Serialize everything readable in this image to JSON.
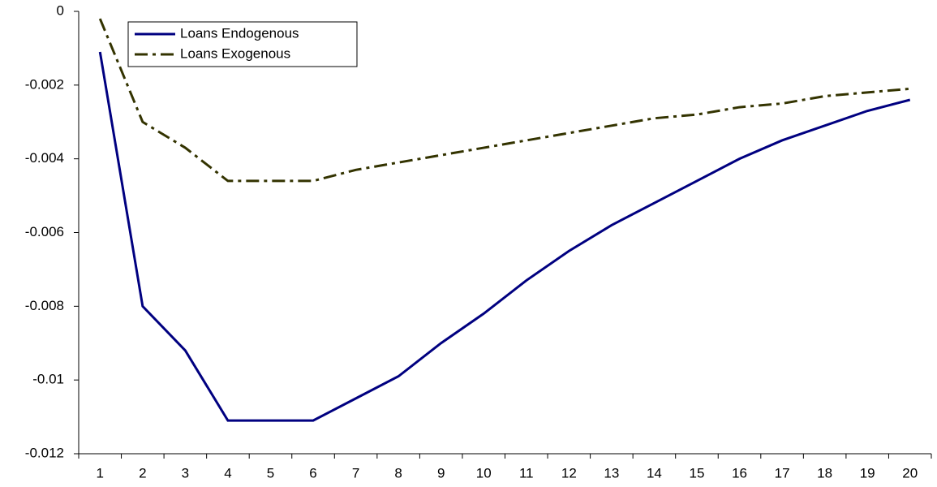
{
  "chart_data": {
    "type": "line",
    "categories": [
      "1",
      "2",
      "3",
      "4",
      "5",
      "6",
      "7",
      "8",
      "9",
      "10",
      "11",
      "12",
      "13",
      "14",
      "15",
      "16",
      "17",
      "18",
      "19",
      "20"
    ],
    "series": [
      {
        "name": "Loans Endogenous",
        "color": "#000080",
        "dash": "solid",
        "values": [
          -0.0011,
          -0.008,
          -0.0092,
          -0.0111,
          -0.0111,
          -0.0111,
          -0.0105,
          -0.0099,
          -0.009,
          -0.0082,
          -0.0073,
          -0.0065,
          -0.0058,
          -0.0052,
          -0.0046,
          -0.004,
          -0.0035,
          -0.0031,
          -0.0027,
          -0.0024
        ]
      },
      {
        "name": "Loans Exogenous",
        "color": "#333300",
        "dash": "dashdot",
        "values": [
          -0.0002,
          -0.003,
          -0.0037,
          -0.0046,
          -0.0046,
          -0.0046,
          -0.0043,
          -0.0041,
          -0.0039,
          -0.0037,
          -0.0035,
          -0.0033,
          -0.0031,
          -0.0029,
          -0.0028,
          -0.0026,
          -0.0025,
          -0.0023,
          -0.0022,
          -0.0021
        ]
      }
    ],
    "ylim": [
      -0.012,
      0
    ],
    "yticks": [
      0,
      -0.002,
      -0.004,
      -0.006,
      -0.008,
      -0.01,
      -0.012
    ],
    "grid": false,
    "legend": "top-left"
  }
}
